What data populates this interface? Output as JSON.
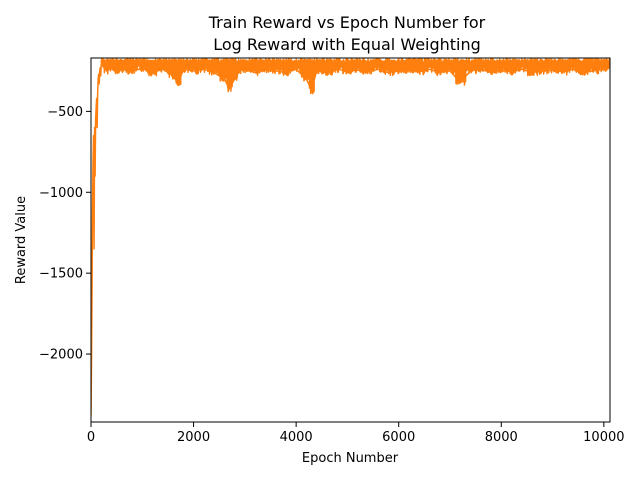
{
  "chart_data": {
    "type": "line",
    "title": [
      "Train Reward vs Epoch Number for",
      "Log Reward with Equal Weighting"
    ],
    "xlabel": "Epoch Number",
    "ylabel": "Reward Value",
    "xlim": [
      0,
      10120
    ],
    "ylim": [
      -2420,
      -170
    ],
    "x_ticks": [
      0,
      2000,
      4000,
      6000,
      8000,
      10000
    ],
    "x_tick_labels": [
      "0",
      "2000",
      "4000",
      "6000",
      "8000",
      "10000"
    ],
    "y_ticks": [
      -500,
      -1000,
      -1500,
      -2000
    ],
    "y_tick_labels": [
      "−500",
      "−1000",
      "−1500",
      "−2000"
    ],
    "grid": false,
    "legend": "none",
    "series": [
      {
        "color": "#ff7f0e",
        "x": [
          0,
          10,
          20,
          30,
          40,
          50,
          60,
          70,
          80,
          90,
          100,
          110,
          120,
          130,
          140,
          150,
          160,
          170,
          180,
          190,
          200,
          300,
          400,
          500,
          600,
          800,
          1000,
          1200,
          1400,
          1600,
          1700,
          1800,
          2000,
          2200,
          2400,
          2600,
          2700,
          2800,
          2900,
          3000,
          3200,
          3400,
          3600,
          3800,
          4000,
          4200,
          4300,
          4400,
          4600,
          4800,
          5000,
          5200,
          5400,
          5600,
          5800,
          6000,
          6200,
          6400,
          6600,
          6800,
          7000,
          7200,
          7400,
          7600,
          7800,
          8000,
          8200,
          8400,
          8600,
          8800,
          9000,
          9200,
          9400,
          9600,
          9800,
          10000,
          10120
        ],
        "y": [
          -2380,
          -2050,
          -1600,
          -1100,
          -800,
          -650,
          -1350,
          -600,
          -900,
          -550,
          -480,
          -420,
          -600,
          -380,
          -300,
          -270,
          -330,
          -250,
          -230,
          -280,
          -210,
          -250,
          -230,
          -260,
          -240,
          -250,
          -235,
          -260,
          -240,
          -280,
          -330,
          -240,
          -250,
          -240,
          -260,
          -300,
          -360,
          -300,
          -250,
          -240,
          -260,
          -240,
          -250,
          -260,
          -240,
          -300,
          -370,
          -250,
          -260,
          -240,
          -250,
          -245,
          -255,
          -240,
          -260,
          -250,
          -245,
          -255,
          -240,
          -260,
          -250,
          -320,
          -250,
          -240,
          -260,
          -245,
          -255,
          -240,
          -260,
          -250,
          -245,
          -255,
          -240,
          -260,
          -250,
          -240,
          -230
        ],
        "band_low": [
          -290,
          -280,
          -300,
          -320,
          -350,
          -380,
          -330,
          -300
        ],
        "band_high": -175
      }
    ]
  }
}
